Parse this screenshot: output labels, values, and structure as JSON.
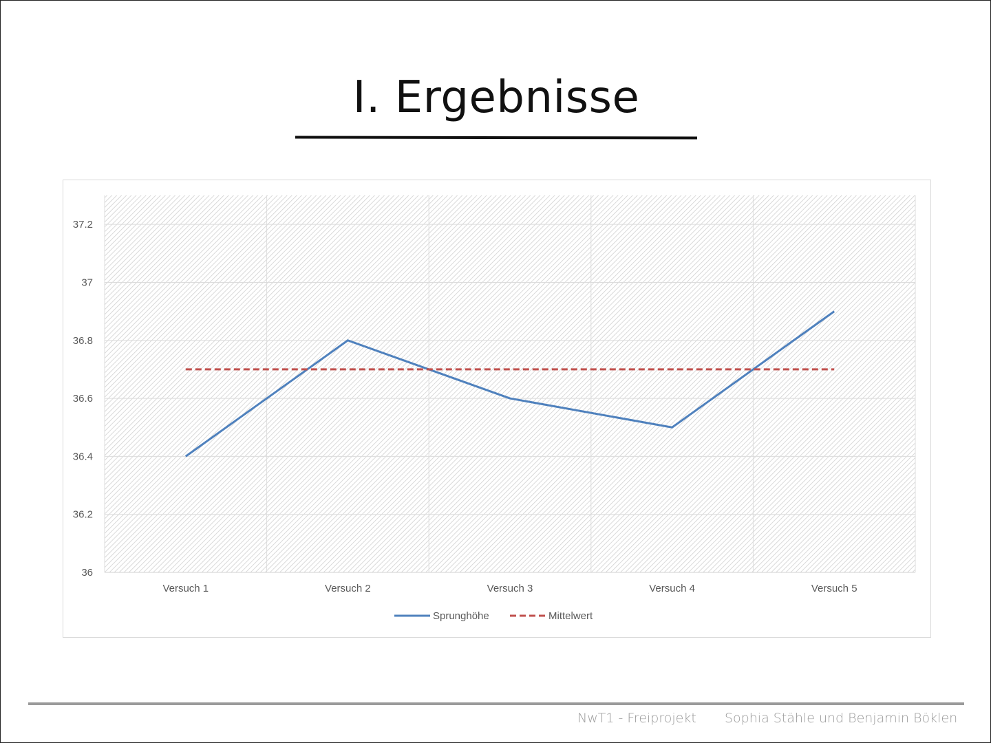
{
  "slide": {
    "title": "I. Ergebnisse",
    "footer_left": "NwT1 - Freiprojekt",
    "footer_right": "Sophia Stähle und Benjamin Böklen"
  },
  "chart_data": {
    "type": "line",
    "categories": [
      "Versuch 1",
      "Versuch 2",
      "Versuch 3",
      "Versuch 4",
      "Versuch 5"
    ],
    "series": [
      {
        "name": "Sprunghöhe",
        "values": [
          36.4,
          36.8,
          36.6,
          36.5,
          36.9
        ],
        "color": "#4F81BD",
        "style": "solid"
      },
      {
        "name": "Mittelwert",
        "values": [
          36.7,
          36.7,
          36.7,
          36.7,
          36.7
        ],
        "color": "#C0504D",
        "style": "dashed"
      }
    ],
    "yticks": [
      "36",
      "36.2",
      "36.4",
      "36.6",
      "36.8",
      "37",
      "37.2"
    ],
    "ylim": [
      36,
      37.3
    ],
    "grid": true,
    "legend": "bottom",
    "title": "",
    "xlabel": "",
    "ylabel": ""
  }
}
